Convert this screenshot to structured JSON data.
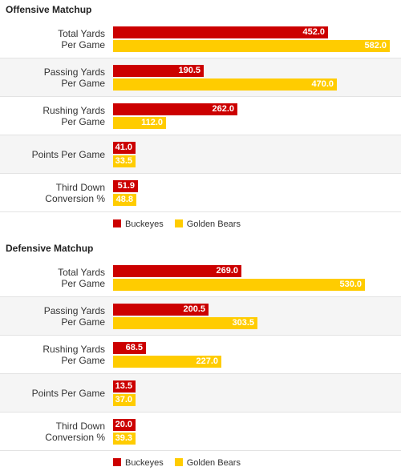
{
  "chart_data": [
    {
      "type": "bar",
      "orientation": "horizontal",
      "title": "Offensive Matchup",
      "categories": [
        "Total Yards\nPer Game",
        "Passing Yards\nPer Game",
        "Rushing Yards\nPer Game",
        "Points Per Game",
        "Third Down\nConversion %"
      ],
      "series": [
        {
          "name": "Buckeyes",
          "color": "#cc0000",
          "values": [
            452.0,
            190.5,
            262.0,
            41.0,
            51.9
          ],
          "labels": [
            "452.0",
            "190.5",
            "262.0",
            "41.0",
            "51.9"
          ]
        },
        {
          "name": "Golden Bears",
          "color": "#ffcc00",
          "values": [
            582.0,
            470.0,
            112.0,
            33.5,
            48.8
          ],
          "labels": [
            "582.0",
            "470.0",
            "112.0",
            "33.5",
            "48.8"
          ]
        }
      ],
      "legend": [
        "Buckeyes",
        "Golden Bears"
      ],
      "legend_position": "bottom",
      "grid": false
    },
    {
      "type": "bar",
      "orientation": "horizontal",
      "title": "Defensive Matchup",
      "categories": [
        "Total Yards\nPer Game",
        "Passing Yards\nPer Game",
        "Rushing Yards\nPer Game",
        "Points Per Game",
        "Third Down\nConversion %"
      ],
      "series": [
        {
          "name": "Buckeyes",
          "color": "#cc0000",
          "values": [
            269.0,
            200.5,
            68.5,
            13.5,
            20.0
          ],
          "labels": [
            "269.0",
            "200.5",
            "68.5",
            "13.5",
            "20.0"
          ]
        },
        {
          "name": "Golden Bears",
          "color": "#ffcc00",
          "values": [
            530.0,
            303.5,
            227.0,
            37.0,
            39.3
          ],
          "labels": [
            "530.0",
            "303.5",
            "227.0",
            "37.0",
            "39.3"
          ]
        }
      ],
      "legend": [
        "Buckeyes",
        "Golden Bears"
      ],
      "legend_position": "bottom",
      "grid": false
    }
  ]
}
